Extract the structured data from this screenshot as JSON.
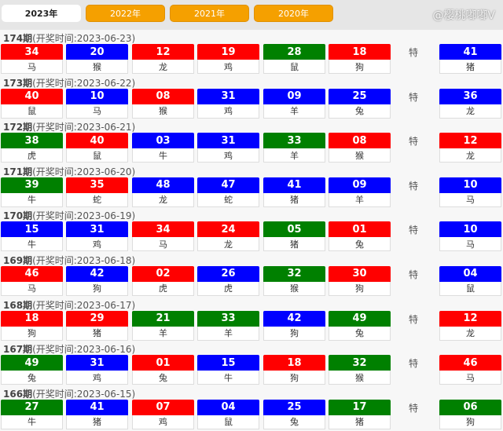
{
  "colors": {
    "red": "#ff0000",
    "blue": "#0000ff",
    "green": "#008000",
    "tab_orange": "#f5a000"
  },
  "tabs": [
    {
      "label": "2023年",
      "active": true
    },
    {
      "label": "2022年"
    },
    {
      "label": "2021年"
    },
    {
      "label": "2020年"
    }
  ],
  "special_label": "特",
  "watermark": "@樱桃嘟嘟V",
  "draws": [
    {
      "issue": "174期",
      "time": "(开奖时间:2023-06-23)",
      "balls": [
        [
          "34",
          "red",
          "马"
        ],
        [
          "20",
          "blue",
          "猴"
        ],
        [
          "12",
          "red",
          "龙"
        ],
        [
          "19",
          "red",
          "鸡"
        ],
        [
          "28",
          "green",
          "鼠"
        ],
        [
          "18",
          "red",
          "狗"
        ]
      ],
      "special": [
        "41",
        "blue",
        "猪"
      ]
    },
    {
      "issue": "173期",
      "time": "(开奖时间:2023-06-22)",
      "balls": [
        [
          "40",
          "red",
          "鼠"
        ],
        [
          "10",
          "blue",
          "马"
        ],
        [
          "08",
          "red",
          "猴"
        ],
        [
          "31",
          "blue",
          "鸡"
        ],
        [
          "09",
          "blue",
          "羊"
        ],
        [
          "25",
          "blue",
          "兔"
        ]
      ],
      "special": [
        "36",
        "blue",
        "龙"
      ]
    },
    {
      "issue": "172期",
      "time": "(开奖时间:2023-06-21)",
      "balls": [
        [
          "38",
          "green",
          "虎"
        ],
        [
          "40",
          "red",
          "鼠"
        ],
        [
          "03",
          "blue",
          "牛"
        ],
        [
          "31",
          "blue",
          "鸡"
        ],
        [
          "33",
          "green",
          "羊"
        ],
        [
          "08",
          "red",
          "猴"
        ]
      ],
      "special": [
        "12",
        "red",
        "龙"
      ]
    },
    {
      "issue": "171期",
      "time": "(开奖时间:2023-06-20)",
      "balls": [
        [
          "39",
          "green",
          "牛"
        ],
        [
          "35",
          "red",
          "蛇"
        ],
        [
          "48",
          "blue",
          "龙"
        ],
        [
          "47",
          "blue",
          "蛇"
        ],
        [
          "41",
          "blue",
          "猪"
        ],
        [
          "09",
          "blue",
          "羊"
        ]
      ],
      "special": [
        "10",
        "blue",
        "马"
      ]
    },
    {
      "issue": "170期",
      "time": "(开奖时间:2023-06-19)",
      "balls": [
        [
          "15",
          "blue",
          "牛"
        ],
        [
          "31",
          "blue",
          "鸡"
        ],
        [
          "34",
          "red",
          "马"
        ],
        [
          "24",
          "red",
          "龙"
        ],
        [
          "05",
          "green",
          "猪"
        ],
        [
          "01",
          "red",
          "兔"
        ]
      ],
      "special": [
        "10",
        "blue",
        "马"
      ]
    },
    {
      "issue": "169期",
      "time": "(开奖时间:2023-06-18)",
      "balls": [
        [
          "46",
          "red",
          "马"
        ],
        [
          "42",
          "blue",
          "狗"
        ],
        [
          "02",
          "red",
          "虎"
        ],
        [
          "26",
          "blue",
          "虎"
        ],
        [
          "32",
          "green",
          "猴"
        ],
        [
          "30",
          "red",
          "狗"
        ]
      ],
      "special": [
        "04",
        "blue",
        "鼠"
      ]
    },
    {
      "issue": "168期",
      "time": "(开奖时间:2023-06-17)",
      "balls": [
        [
          "18",
          "red",
          "狗"
        ],
        [
          "29",
          "red",
          "猪"
        ],
        [
          "21",
          "green",
          "羊"
        ],
        [
          "33",
          "green",
          "羊"
        ],
        [
          "42",
          "blue",
          "狗"
        ],
        [
          "49",
          "green",
          "兔"
        ]
      ],
      "special": [
        "12",
        "red",
        "龙"
      ]
    },
    {
      "issue": "167期",
      "time": "(开奖时间:2023-06-16)",
      "balls": [
        [
          "49",
          "green",
          "兔"
        ],
        [
          "31",
          "blue",
          "鸡"
        ],
        [
          "01",
          "red",
          "兔"
        ],
        [
          "15",
          "blue",
          "牛"
        ],
        [
          "18",
          "red",
          "狗"
        ],
        [
          "32",
          "green",
          "猴"
        ]
      ],
      "special": [
        "46",
        "red",
        "马"
      ]
    },
    {
      "issue": "166期",
      "time": "(开奖时间:2023-06-15)",
      "balls": [
        [
          "27",
          "green",
          "牛"
        ],
        [
          "41",
          "blue",
          "猪"
        ],
        [
          "07",
          "red",
          "鸡"
        ],
        [
          "04",
          "blue",
          "鼠"
        ],
        [
          "25",
          "blue",
          "兔"
        ],
        [
          "17",
          "green",
          "猪"
        ]
      ],
      "special": [
        "06",
        "green",
        "狗"
      ]
    }
  ]
}
